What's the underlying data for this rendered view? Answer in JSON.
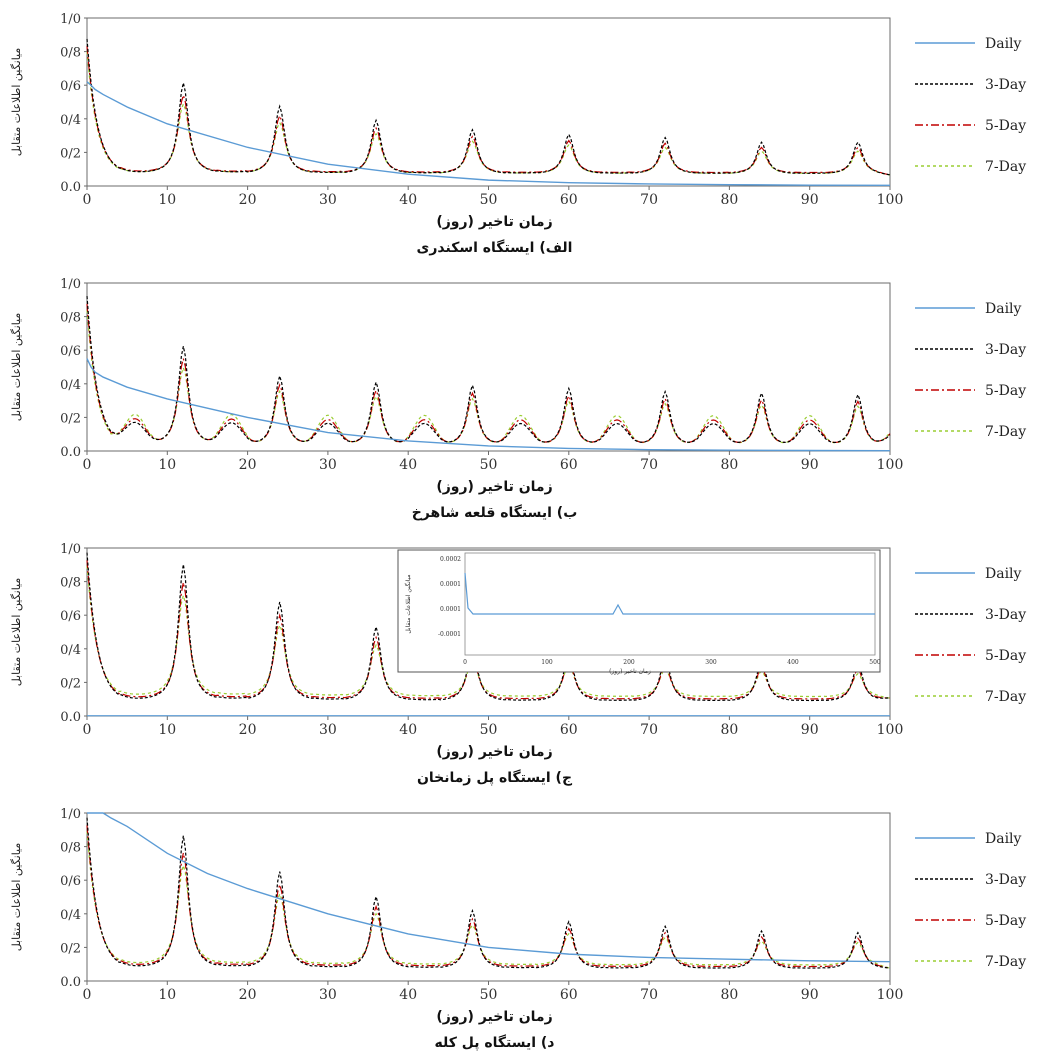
{
  "chart_data": [
    {
      "type": "line",
      "caption": "الف) ایستگاه اسکندری",
      "xlabel": "زمان تاخیر (روز)",
      "ylabel": "میانگین اطلاعات متقابل",
      "xlim": [
        0,
        100
      ],
      "ylim": [
        0,
        1
      ],
      "xticks": [
        "0",
        "10",
        "20",
        "30",
        "40",
        "50",
        "60",
        "70",
        "80",
        "90",
        "100"
      ],
      "yticks": [
        "0.0",
        "0/2",
        "0/4",
        "0/6",
        "0/8",
        "1/0"
      ],
      "daily_curve": {
        "x": [
          0,
          0.5,
          1,
          2,
          5,
          10,
          20,
          30,
          40,
          50,
          60,
          70,
          80,
          90,
          100
        ],
        "y": [
          0.62,
          0.6,
          0.575,
          0.545,
          0.47,
          0.37,
          0.23,
          0.13,
          0.07,
          0.035,
          0.02,
          0.012,
          0.008,
          0.005,
          0.004
        ]
      },
      "periodic": {
        "period": 12,
        "base": [
          0.06,
          0.07,
          0.075,
          0.07
        ],
        "peaks": [
          0.66,
          0.51,
          0.42,
          0.36,
          0.33,
          0.31,
          0.28,
          0.28
        ],
        "init": 0.9,
        "sub": 0,
        "tail": 0.06
      },
      "legend": [
        "Daily",
        "3-Day",
        "5-Day",
        "7-Day"
      ],
      "colors": [
        "#5b9bd5",
        "#000000",
        "#c00000",
        "#9acd32"
      ]
    },
    {
      "type": "line",
      "caption": "ب) ایستگاه قلعه شاهرخ",
      "xlabel": "زمان تاخیر (روز)",
      "ylabel": "میانگین اطلاعات متقابل",
      "xlim": [
        0,
        100
      ],
      "ylim": [
        0,
        1
      ],
      "xticks": [
        "0",
        "10",
        "20",
        "30",
        "40",
        "50",
        "60",
        "70",
        "80",
        "90",
        "100"
      ],
      "yticks": [
        "0.0",
        "0/2",
        "0/4",
        "0/6",
        "0/8",
        "1/0"
      ],
      "daily_curve": {
        "x": [
          0,
          0.5,
          1,
          2,
          5,
          10,
          20,
          30,
          40,
          50,
          60,
          70,
          80,
          90,
          100
        ],
        "y": [
          0.55,
          0.5,
          0.47,
          0.44,
          0.38,
          0.31,
          0.2,
          0.11,
          0.06,
          0.03,
          0.015,
          0.008,
          0.005,
          0.003,
          0.002
        ]
      },
      "periodic": {
        "period": 12,
        "base": [
          0.03,
          0.025,
          0.025,
          0.02
        ],
        "peaks": [
          0.67,
          0.48,
          0.44,
          0.42,
          0.4,
          0.38,
          0.37,
          0.36
        ],
        "init": 0.95,
        "sub": 0.15,
        "tail": 0.05
      },
      "legend": [
        "Daily",
        "3-Day",
        "5-Day",
        "7-Day"
      ],
      "colors": [
        "#5b9bd5",
        "#000000",
        "#c00000",
        "#9acd32"
      ]
    },
    {
      "type": "line",
      "caption": "ج) ایستگاه پل زمانخان",
      "xlabel": "زمان تاخیر (روز)",
      "ylabel": "میانگین اطلاعات متقابل",
      "xlim": [
        0,
        100
      ],
      "ylim": [
        0,
        1
      ],
      "xticks": [
        "0",
        "10",
        "20",
        "30",
        "40",
        "50",
        "60",
        "70",
        "80",
        "90",
        "100"
      ],
      "yticks": [
        "0.0",
        "0/2",
        "0/4",
        "0/6",
        "0/8",
        "1/0"
      ],
      "daily_curve": null,
      "periodic": {
        "period": 12,
        "base": [
          0.07,
          0.085,
          0.095,
          0.11
        ],
        "peaks": [
          0.97,
          0.73,
          0.57,
          0.45,
          0.41,
          0.38,
          0.36,
          0.34
        ],
        "init": 1.0,
        "sub": 0,
        "tail": 0.1
      },
      "legend": [
        "Daily",
        "3-Day",
        "5-Day",
        "7-Day"
      ],
      "colors": [
        "#5b9bd5",
        "#000000",
        "#c00000",
        "#9acd32"
      ],
      "inset": {
        "ylabel": "میانگین اطلاعات متقابل",
        "xlabel": "زمان تاخیر (روز)",
        "yticks": [
          "0.0002",
          "0.0001",
          "0.0001",
          "-0.0001"
        ],
        "xticks": [
          "0",
          "100",
          "200",
          "300",
          "400",
          "500"
        ]
      }
    },
    {
      "type": "line",
      "caption": "د) ایستگاه پل کله",
      "xlabel": "زمان تاخیر (روز)",
      "ylabel": "میانگین اطلاعات متقابل",
      "xlim": [
        0,
        100
      ],
      "ylim": [
        0,
        1
      ],
      "xticks": [
        "0",
        "10",
        "20",
        "30",
        "40",
        "50",
        "60",
        "70",
        "80",
        "90",
        "100"
      ],
      "yticks": [
        "0.0",
        "0/2",
        "0/4",
        "0/6",
        "0/8",
        "1/0"
      ],
      "daily_curve": {
        "x": [
          0,
          1,
          2,
          3,
          5,
          10,
          15,
          20,
          30,
          40,
          50,
          60,
          70,
          80,
          90,
          100
        ],
        "y": [
          1.05,
          1.02,
          1.0,
          0.97,
          0.92,
          0.76,
          0.64,
          0.55,
          0.4,
          0.28,
          0.2,
          0.16,
          0.14,
          0.13,
          0.12,
          0.115
        ]
      },
      "periodic": {
        "period": 12,
        "base": [
          0.06,
          0.07,
          0.08,
          0.09
        ],
        "peaks": [
          0.93,
          0.7,
          0.54,
          0.45,
          0.38,
          0.35,
          0.32,
          0.31
        ],
        "init": 1.0,
        "sub": 0,
        "tail": 0.07
      },
      "legend": [
        "Daily",
        "3-Day",
        "5-Day",
        "7-Day"
      ],
      "colors": [
        "#5b9bd5",
        "#000000",
        "#c00000",
        "#9acd32"
      ]
    }
  ]
}
